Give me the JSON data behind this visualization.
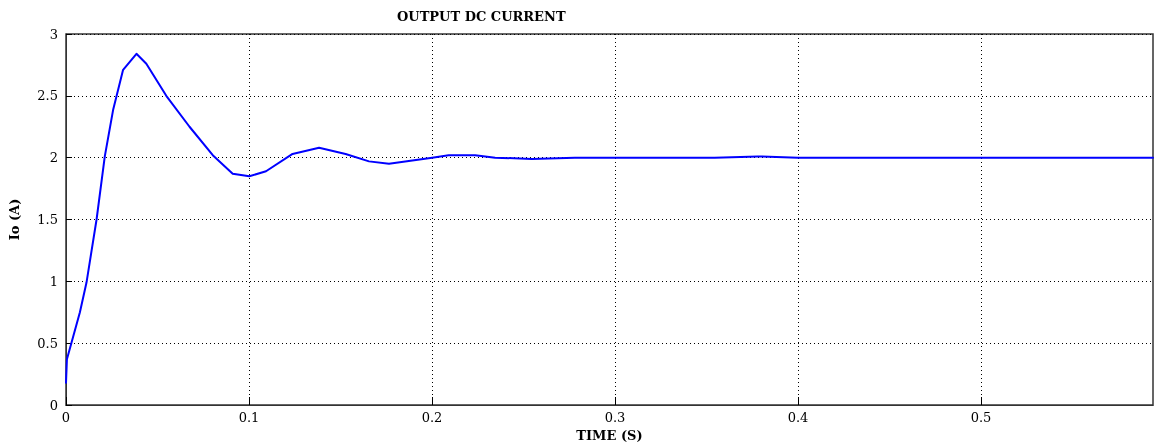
{
  "chart_data": {
    "type": "line",
    "title": "OUTPUT DC CURRENT",
    "xlabel": "TIME (S)",
    "ylabel": "Io (A)",
    "xlim": [
      0,
      0.594
    ],
    "xticks": [
      0,
      0.1,
      0.2,
      0.3,
      0.4,
      0.5
    ],
    "ylim": [
      0,
      3
    ],
    "yticks": [
      0,
      0.5,
      1,
      1.5,
      2,
      2.5,
      3
    ],
    "grid": true,
    "marker": "none",
    "line_style": "solid",
    "legend": false,
    "series": [
      {
        "color": "#0000ff",
        "x": [
          0,
          0.0005,
          0.0076,
          0.0112,
          0.0167,
          0.0212,
          0.0258,
          0.0312,
          0.0385,
          0.0439,
          0.0548,
          0.0675,
          0.0802,
          0.0911,
          0.1002,
          0.1093,
          0.1238,
          0.1383,
          0.1528,
          0.1656,
          0.1765,
          0.2001,
          0.2091,
          0.2236,
          0.2345,
          0.2545,
          0.2781,
          0.309,
          0.3544,
          0.378,
          0.4,
          0.594
        ],
        "values": [
          0.18,
          0.37,
          0.75,
          0.99,
          1.5,
          2.01,
          2.39,
          2.71,
          2.84,
          2.76,
          2.5,
          2.25,
          2.02,
          1.87,
          1.85,
          1.89,
          2.03,
          2.08,
          2.03,
          1.97,
          1.95,
          2.0,
          2.02,
          2.02,
          2.0,
          1.99,
          2.0,
          2.0,
          2.0,
          2.01,
          2.0,
          2.0
        ]
      }
    ]
  }
}
